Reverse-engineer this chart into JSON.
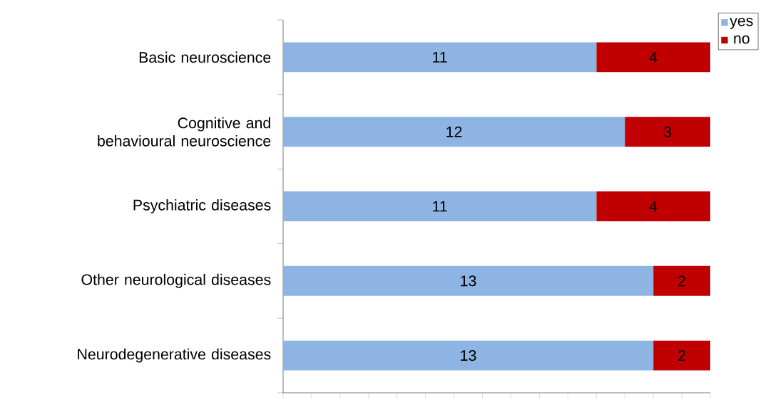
{
  "chart_data": {
    "type": "bar",
    "orientation": "horizontal",
    "stacked": true,
    "data_labels": true,
    "categories": [
      "Basic neuroscience",
      "Cognitive and behavioural neuroscience",
      "Psychiatric diseases",
      "Other neurological diseases",
      "Neurodegenerative diseases"
    ],
    "series": [
      {
        "name": "yes",
        "color": "#8eb4e3",
        "values": [
          11,
          12,
          11,
          13,
          13
        ]
      },
      {
        "name": "no",
        "color": "#c00000",
        "values": [
          4,
          3,
          4,
          2,
          2
        ]
      }
    ],
    "tick_labels": "y",
    "grid": false,
    "legend": "top right"
  }
}
